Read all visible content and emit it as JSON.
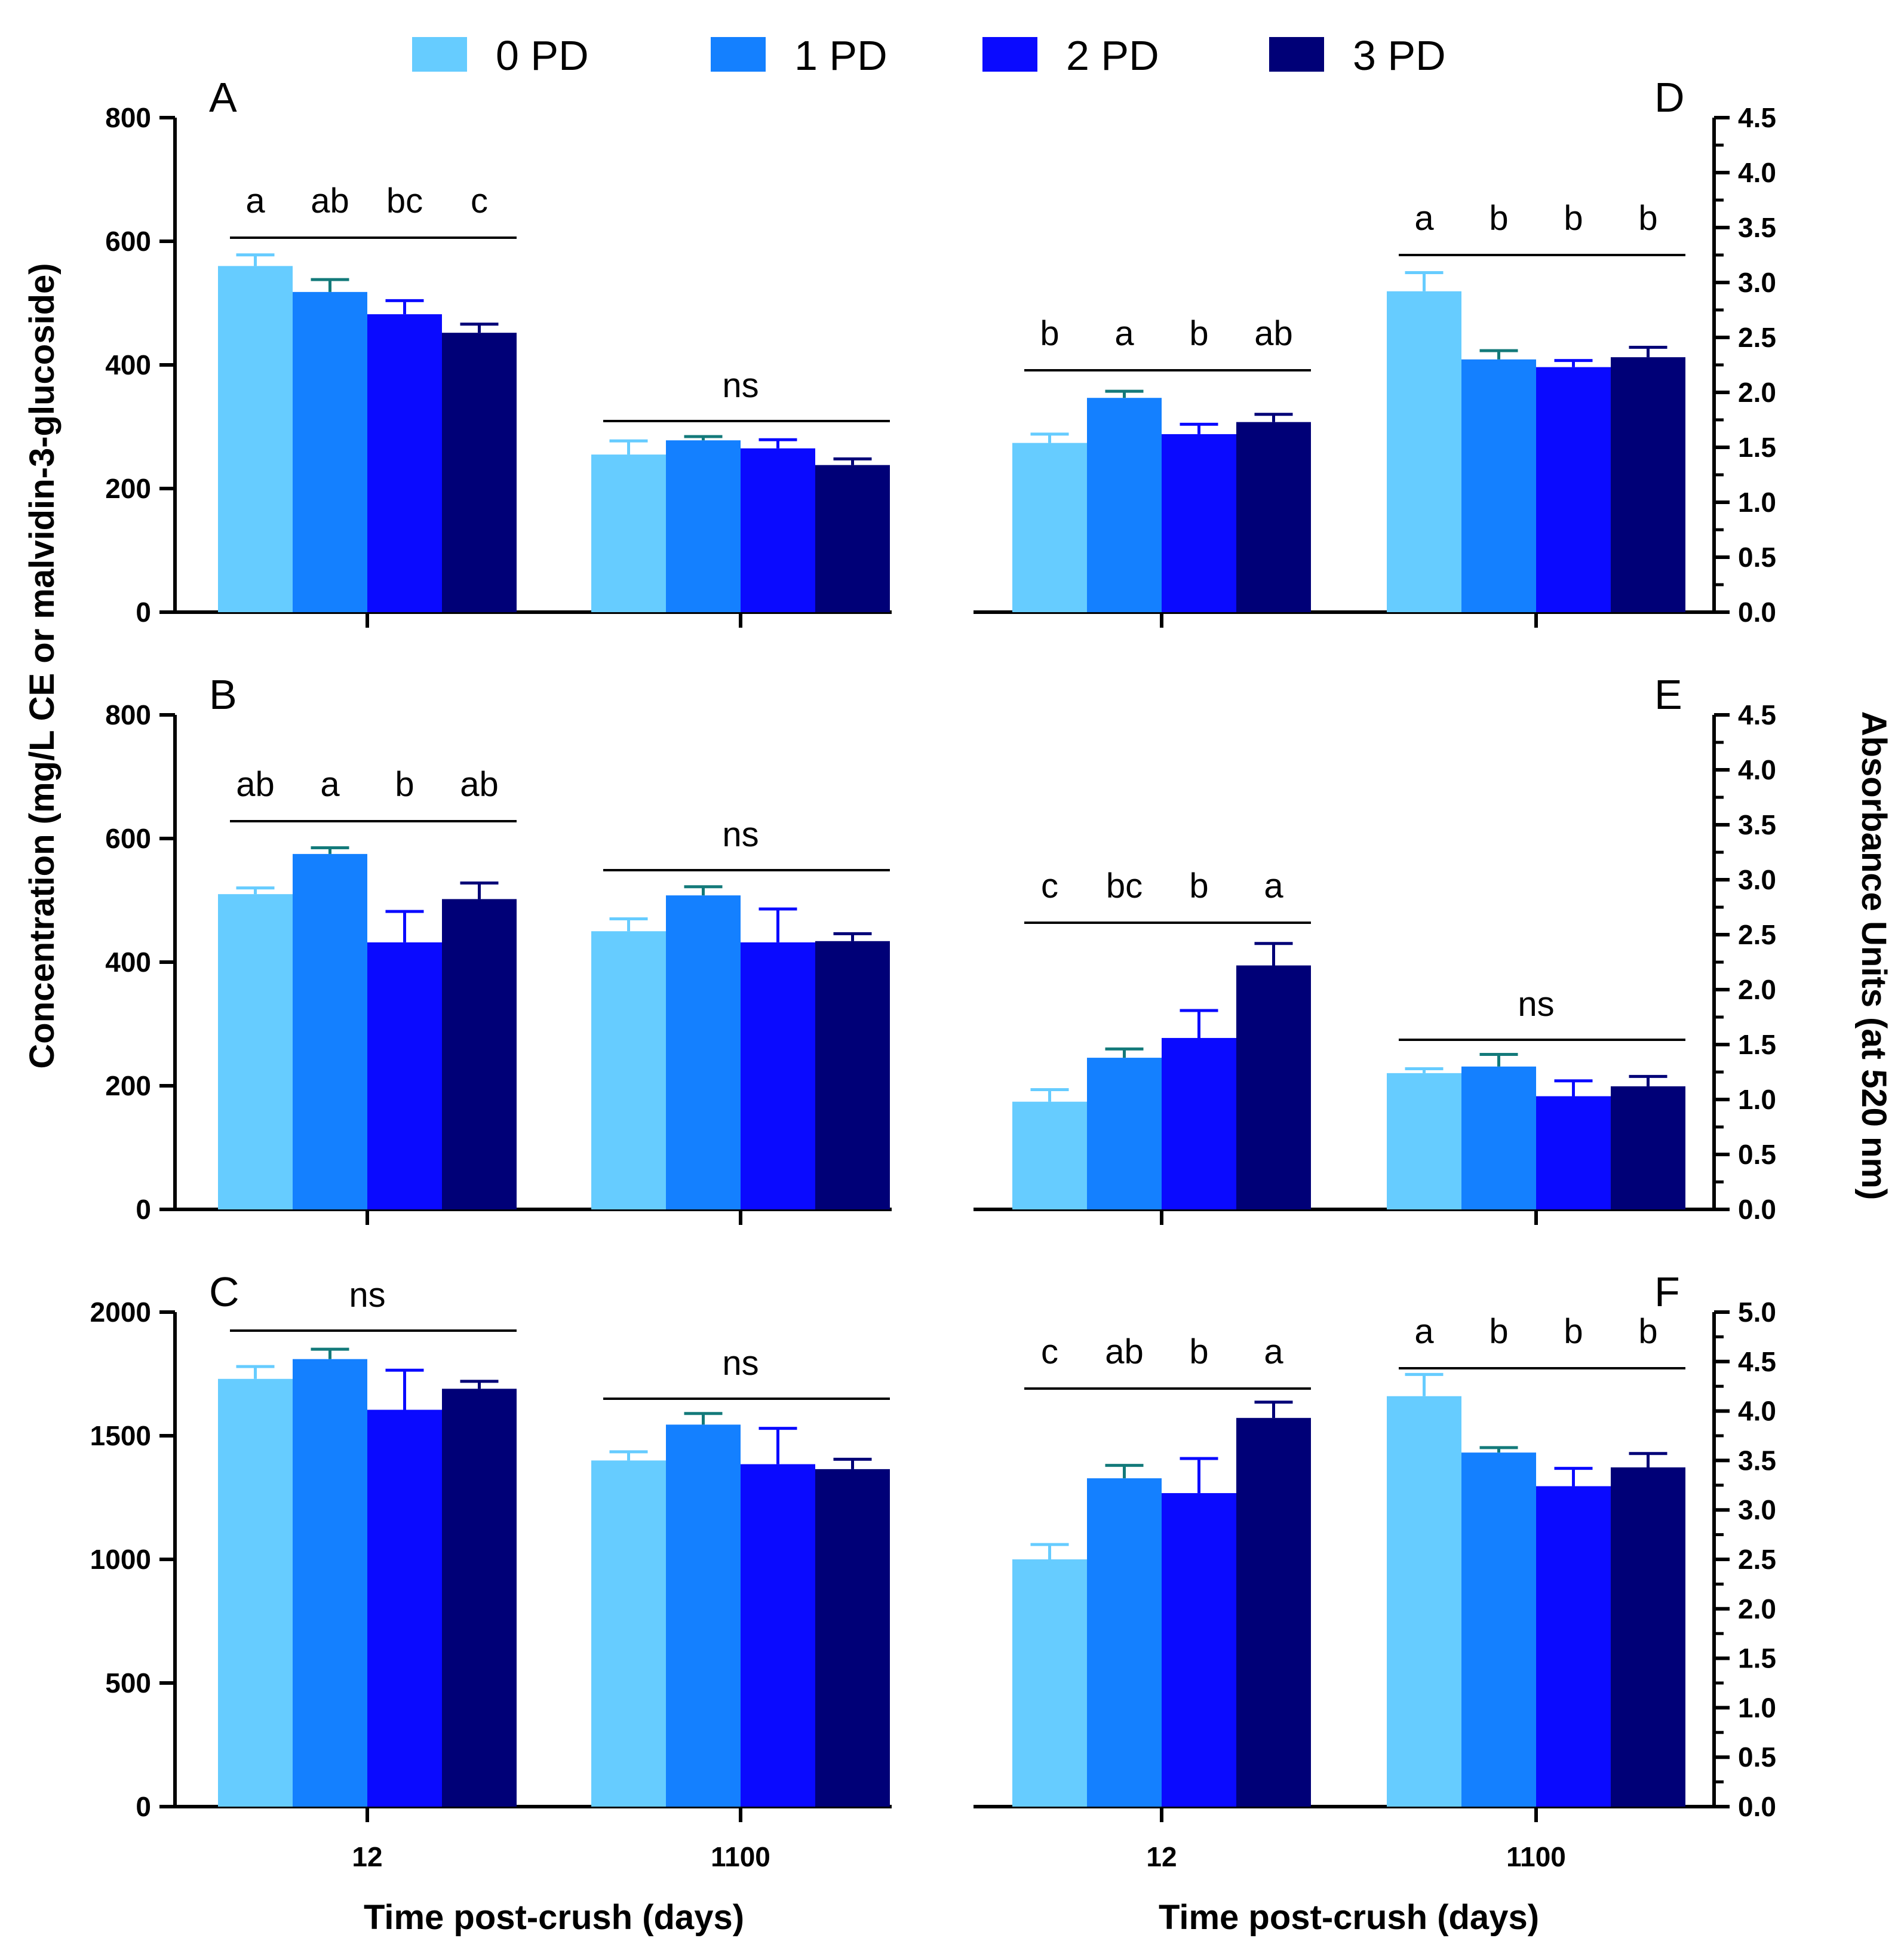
{
  "colors": {
    "axis": "#000000",
    "series": [
      "#66CCFF",
      "#1480FF",
      "#0A0AFF",
      "#000077"
    ],
    "errorbar": [
      "#66CCFF",
      "#137A7A",
      "#0A0AFF",
      "#000077"
    ]
  },
  "legend": [
    "0 PD",
    "1 PD",
    "2 PD",
    "3 PD"
  ],
  "y_title_left": "Concentration (mg/L CE or malvidin-3-glucoside)",
  "y_title_right": "Absorbance Units  (at 520 nm)",
  "chart_data": [
    {
      "panel": "A",
      "type": "bar",
      "axis": "left",
      "categories": [
        "12",
        "1100"
      ],
      "ylim": [
        0,
        800
      ],
      "ticks": [
        "0",
        "200",
        "400",
        "600",
        "800"
      ],
      "series": [
        {
          "name": "0 PD",
          "values": [
            560,
            255
          ],
          "errors": [
            18,
            22
          ]
        },
        {
          "name": "1 PD",
          "values": [
            518,
            278
          ],
          "errors": [
            20,
            6
          ]
        },
        {
          "name": "2 PD",
          "values": [
            482,
            265
          ],
          "errors": [
            22,
            14
          ]
        },
        {
          "name": "3 PD",
          "values": [
            452,
            238
          ],
          "errors": [
            14,
            10
          ]
        }
      ],
      "letters": [
        [
          "a",
          "ab",
          "bc",
          "c"
        ],
        [
          "ns"
        ]
      ]
    },
    {
      "panel": "B",
      "type": "bar",
      "axis": "left",
      "categories": [
        "12",
        "1100"
      ],
      "ylim": [
        0,
        800
      ],
      "ticks": [
        "0",
        "200",
        "400",
        "600",
        "800"
      ],
      "series": [
        {
          "name": "0 PD",
          "values": [
            510,
            450
          ],
          "errors": [
            10,
            20
          ]
        },
        {
          "name": "1 PD",
          "values": [
            575,
            508
          ],
          "errors": [
            10,
            14
          ]
        },
        {
          "name": "2 PD",
          "values": [
            432,
            432
          ],
          "errors": [
            50,
            54
          ]
        },
        {
          "name": "3 PD",
          "values": [
            502,
            434
          ],
          "errors": [
            26,
            12
          ]
        }
      ],
      "letters": [
        [
          "ab",
          "a",
          "b",
          "ab"
        ],
        [
          "ns"
        ]
      ]
    },
    {
      "panel": "C",
      "type": "bar",
      "axis": "left",
      "categories": [
        "12",
        "1100"
      ],
      "ylim": [
        0,
        2000
      ],
      "ticks": [
        "0",
        "500",
        "1000",
        "1500",
        "2000"
      ],
      "xlabel": "Time post-crush (days)",
      "series": [
        {
          "name": "0 PD",
          "values": [
            1730,
            1400
          ],
          "errors": [
            50,
            35
          ]
        },
        {
          "name": "1 PD",
          "values": [
            1810,
            1545
          ],
          "errors": [
            40,
            45
          ]
        },
        {
          "name": "2 PD",
          "values": [
            1605,
            1385
          ],
          "errors": [
            160,
            145
          ]
        },
        {
          "name": "3 PD",
          "values": [
            1690,
            1365
          ],
          "errors": [
            30,
            40
          ]
        }
      ],
      "letters": [
        [
          "ns"
        ],
        [
          "ns"
        ]
      ]
    },
    {
      "panel": "D",
      "type": "bar",
      "axis": "right",
      "categories": [
        "12",
        "1100"
      ],
      "ylim": [
        0,
        4.5
      ],
      "ticks": [
        "0.0",
        "0.5",
        "1.0",
        "1.5",
        "2.0",
        "2.5",
        "3.0",
        "3.5",
        "4.0",
        "4.5"
      ],
      "series": [
        {
          "name": "0 PD",
          "values": [
            1.54,
            2.92
          ],
          "errors": [
            0.08,
            0.17
          ]
        },
        {
          "name": "1 PD",
          "values": [
            1.95,
            2.3
          ],
          "errors": [
            0.06,
            0.08
          ]
        },
        {
          "name": "2 PD",
          "values": [
            1.62,
            2.23
          ],
          "errors": [
            0.09,
            0.06
          ]
        },
        {
          "name": "3 PD",
          "values": [
            1.73,
            2.32
          ],
          "errors": [
            0.07,
            0.09
          ]
        }
      ],
      "letters": [
        [
          "b",
          "a",
          "b",
          "ab"
        ],
        [
          "a",
          "b",
          "b",
          "b"
        ]
      ]
    },
    {
      "panel": "E",
      "type": "bar",
      "axis": "right",
      "categories": [
        "12",
        "1100"
      ],
      "ylim": [
        0,
        4.5
      ],
      "ticks": [
        "0.0",
        "0.5",
        "1.0",
        "1.5",
        "2.0",
        "2.5",
        "3.0",
        "3.5",
        "4.0",
        "4.5"
      ],
      "series": [
        {
          "name": "0 PD",
          "values": [
            0.98,
            1.24
          ],
          "errors": [
            0.11,
            0.04
          ]
        },
        {
          "name": "1 PD",
          "values": [
            1.38,
            1.3
          ],
          "errors": [
            0.08,
            0.11
          ]
        },
        {
          "name": "2 PD",
          "values": [
            1.56,
            1.03
          ],
          "errors": [
            0.25,
            0.14
          ]
        },
        {
          "name": "3 PD",
          "values": [
            2.22,
            1.12
          ],
          "errors": [
            0.2,
            0.09
          ]
        }
      ],
      "letters": [
        [
          "c",
          "bc",
          "b",
          "a"
        ],
        [
          "ns"
        ]
      ]
    },
    {
      "panel": "F",
      "type": "bar",
      "axis": "right",
      "categories": [
        "12",
        "1100"
      ],
      "ylim": [
        0,
        5.0
      ],
      "ticks": [
        "0.0",
        "0.5",
        "1.0",
        "1.5",
        "2.0",
        "2.5",
        "3.0",
        "3.5",
        "4.0",
        "4.5",
        "5.0"
      ],
      "xlabel": "Time post-crush (days)",
      "series": [
        {
          "name": "0 PD",
          "values": [
            2.5,
            4.15
          ],
          "errors": [
            0.15,
            0.22
          ]
        },
        {
          "name": "1 PD",
          "values": [
            3.32,
            3.58
          ],
          "errors": [
            0.13,
            0.05
          ]
        },
        {
          "name": "2 PD",
          "values": [
            3.17,
            3.24
          ],
          "errors": [
            0.35,
            0.18
          ]
        },
        {
          "name": "3 PD",
          "values": [
            3.93,
            3.43
          ],
          "errors": [
            0.16,
            0.14
          ]
        }
      ],
      "letters": [
        [
          "c",
          "ab",
          "b",
          "a"
        ],
        [
          "a",
          "b",
          "b",
          "b"
        ]
      ]
    }
  ]
}
